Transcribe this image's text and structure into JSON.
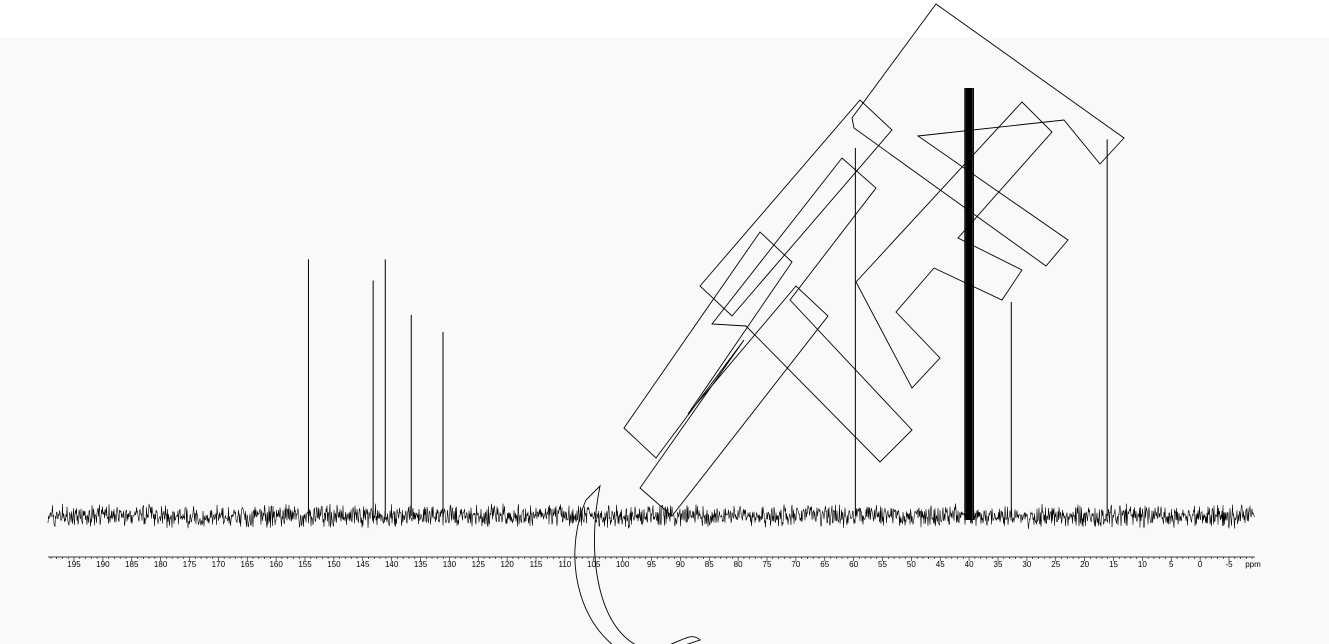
{
  "chart_data": {
    "type": "line",
    "title": "",
    "xlabel": "",
    "ylabel": "",
    "x_unit": "ppm",
    "xlim": [
      199.5,
      -9.5
    ],
    "x_reversed": true,
    "major_ticks": [
      195,
      190,
      185,
      180,
      175,
      170,
      165,
      160,
      155,
      150,
      145,
      140,
      135,
      130,
      125,
      120,
      115,
      110,
      105,
      100,
      95,
      90,
      85,
      80,
      75,
      70,
      65,
      60,
      55,
      50,
      45,
      40,
      35,
      30,
      25,
      20,
      15,
      10,
      5,
      0,
      -5
    ],
    "tick_labels": [
      "195",
      "190",
      "185",
      "180",
      "175",
      "170",
      "165",
      "160",
      "155",
      "150",
      "145",
      "140",
      "135",
      "130",
      "125",
      "120",
      "115",
      "110",
      "105",
      "100",
      "95",
      "90",
      "85",
      "80",
      "75",
      "70",
      "65",
      "60",
      "55",
      "50",
      "45",
      "40",
      "35",
      "30",
      "25",
      "20",
      "15",
      "10",
      "5",
      "0",
      "-5",
      "ppm"
    ],
    "grid": false,
    "legend": "none",
    "peaks_ppm": [
      154.4,
      143.2,
      141.1,
      136.6,
      131.1,
      59.7,
      40.0,
      32.7,
      16.1
    ],
    "peak_intensity_relative": [
      0.6,
      0.55,
      0.6,
      0.47,
      0.43,
      0.86,
      1.0,
      0.5,
      0.88
    ],
    "solvent_multiplet_ppm": [
      40.7,
      40.4,
      40.2,
      40.0,
      39.8,
      39.6,
      39.3
    ],
    "baseline_noise": true
  },
  "watermark": {
    "text": "CHIMEN",
    "color": "#000000",
    "style": "outline"
  },
  "colors": {
    "spectrum": "#000000",
    "background": "#f9f9f9"
  }
}
